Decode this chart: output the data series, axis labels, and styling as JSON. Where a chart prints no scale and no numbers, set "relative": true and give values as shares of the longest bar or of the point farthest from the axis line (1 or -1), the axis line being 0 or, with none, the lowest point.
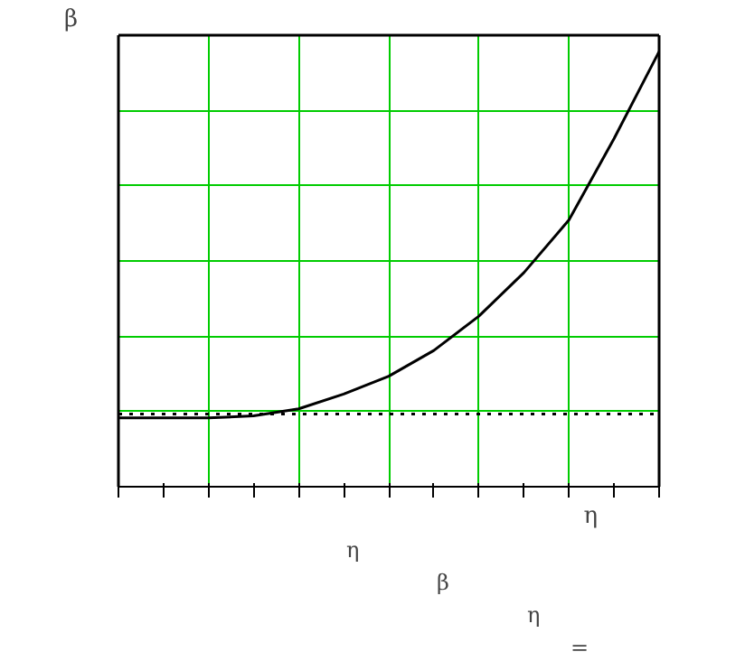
{
  "chart_data": {
    "type": "line",
    "relative": true,
    "xlabel": "η",
    "ylabel": "β",
    "categories": [
      null,
      null,
      null,
      null,
      null,
      null,
      null,
      null,
      null,
      null,
      null,
      null,
      null
    ],
    "grid": true,
    "line_style": "solid",
    "series": [
      {
        "color": "#000000",
        "values": [
          0.158,
          0.158,
          0.158,
          0.163,
          0.179,
          0.213,
          0.254,
          0.313,
          0.392,
          0.492,
          0.613,
          0.8,
          1.0
        ]
      }
    ],
    "ref_lines": [
      {
        "axis": "y",
        "value": 0.167,
        "color": "#000000",
        "line_style": "dotted"
      }
    ],
    "annotations": [
      "η",
      "β",
      "η",
      "="
    ]
  }
}
